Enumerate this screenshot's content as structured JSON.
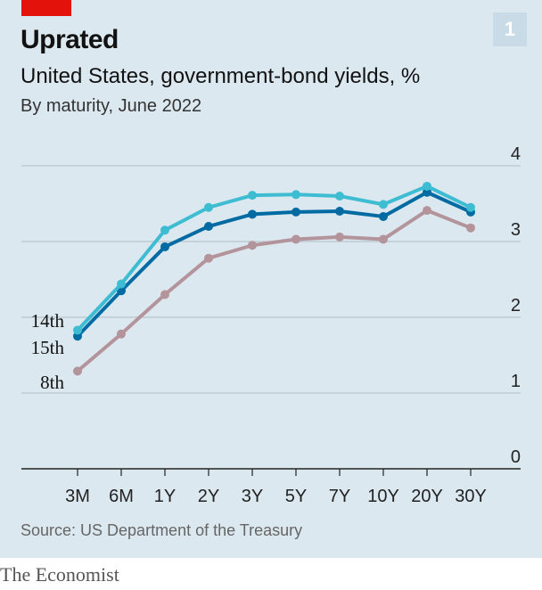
{
  "header": {
    "title": "Uprated",
    "subtitle": "United States, government-bond yields, %",
    "note": "By maturity, June 2022",
    "badge": "1"
  },
  "footer": {
    "source": "Source: US Department of the Treasury",
    "brand": "The Economist"
  },
  "colors": {
    "background": "#dbe8ef",
    "grid": "#b8c4cc",
    "axis": "#222222",
    "series_14th": "#3ebcd2",
    "series_15th": "#006ba2",
    "series_8th": "#b4949b",
    "accent": "#e3120b"
  },
  "chart_data": {
    "type": "line",
    "title": "Uprated",
    "subtitle": "United States, government-bond yields, %",
    "categories": [
      "3M",
      "6M",
      "1Y",
      "2Y",
      "3Y",
      "5Y",
      "7Y",
      "10Y",
      "20Y",
      "30Y"
    ],
    "ylim": [
      0,
      4
    ],
    "yticks": [
      "0",
      "1",
      "2",
      "3",
      "4"
    ],
    "grid": true,
    "y_axis_side": "right",
    "legend": "direct labels left of series",
    "series": [
      {
        "name": "14th",
        "color": "#3ebcd2",
        "values": [
          1.83,
          2.44,
          3.15,
          3.45,
          3.61,
          3.62,
          3.6,
          3.49,
          3.73,
          3.45
        ]
      },
      {
        "name": "15th",
        "color": "#006ba2",
        "values": [
          1.75,
          2.35,
          2.93,
          3.2,
          3.36,
          3.39,
          3.4,
          3.33,
          3.65,
          3.39
        ]
      },
      {
        "name": "8th",
        "color": "#b4949b",
        "values": [
          1.29,
          1.78,
          2.3,
          2.78,
          2.95,
          3.03,
          3.06,
          3.03,
          3.41,
          3.18
        ]
      }
    ]
  }
}
